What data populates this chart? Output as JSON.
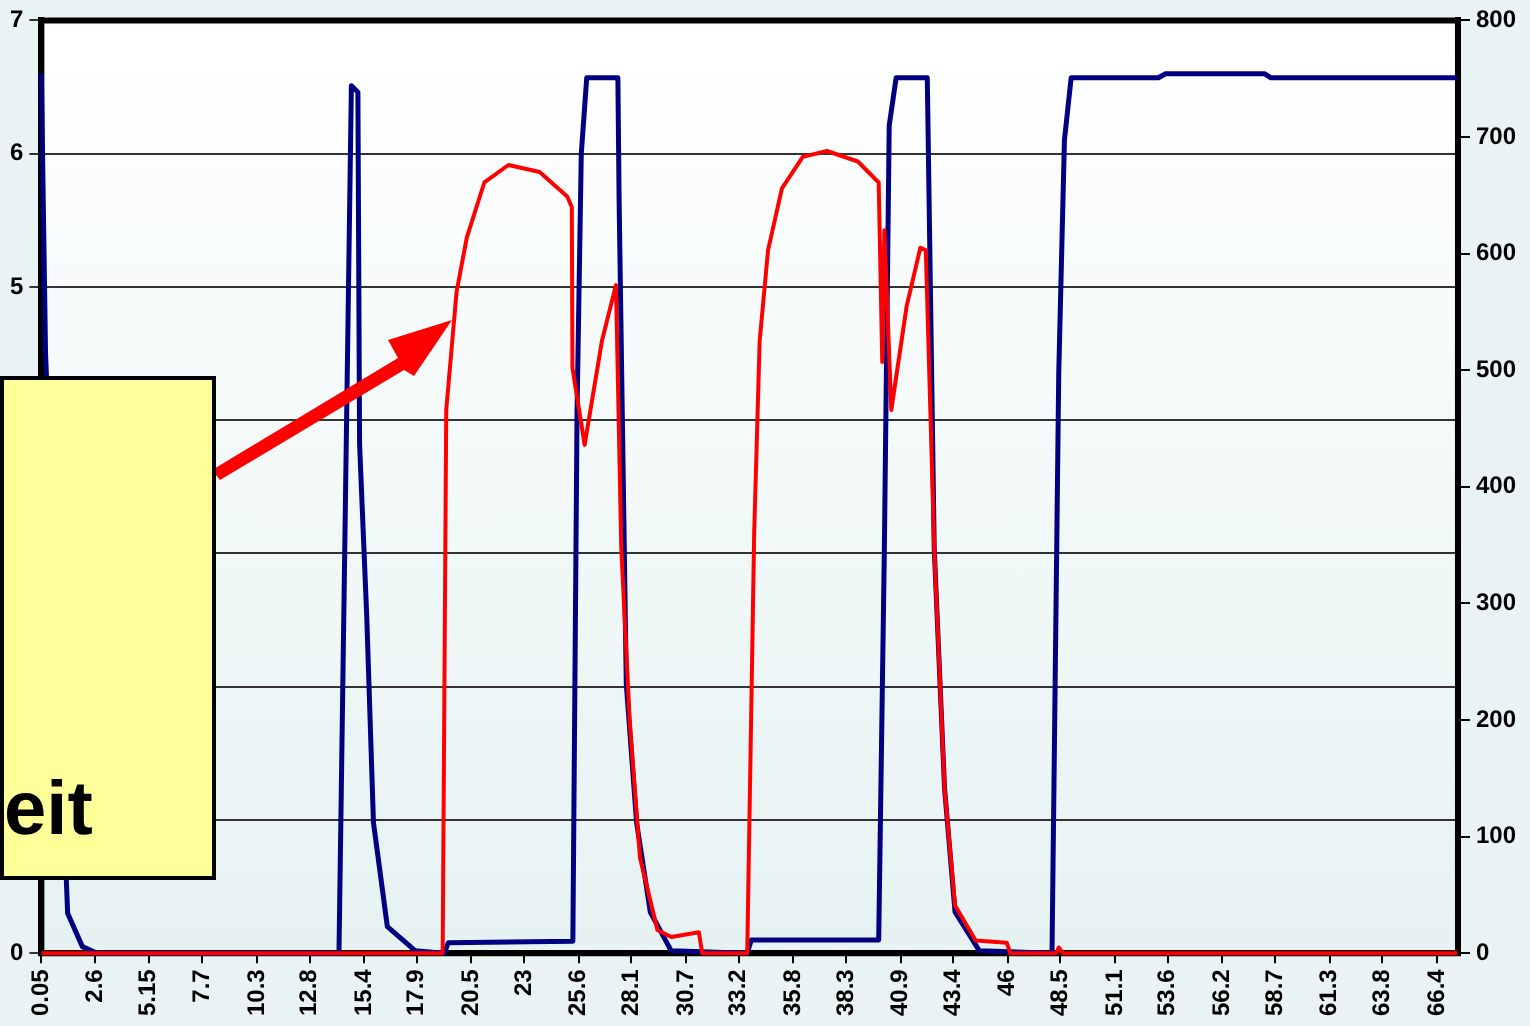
{
  "chart_data": {
    "type": "line",
    "xlim": [
      0.05,
      67.4
    ],
    "xticks": [
      0.05,
      2.6,
      5.15,
      7.7,
      10.3,
      12.8,
      15.4,
      17.9,
      20.5,
      23,
      25.6,
      28.1,
      30.7,
      33.2,
      35.8,
      38.3,
      40.9,
      43.4,
      46,
      48.5,
      51.1,
      53.6,
      56.2,
      58.7,
      61.3,
      63.8,
      66.4
    ],
    "ylim": [
      0,
      7
    ],
    "yticks": [
      0,
      {
        "value": 1,
        "label": null
      },
      {
        "value": 2,
        "label": null
      },
      {
        "value": 3,
        "label": null
      },
      {
        "value": 4,
        "label": null
      },
      5,
      6,
      7
    ],
    "y2lim": [
      0,
      800
    ],
    "y2ticks": [
      0,
      100,
      200,
      300,
      400,
      500,
      600,
      700,
      800
    ],
    "grid": "y",
    "legend": false,
    "marker": "none",
    "line_style": "solid",
    "annotations": [
      "eit"
    ],
    "series": [
      {
        "color": "#000080",
        "x": [
          0.05,
          0.25,
          1.3,
          2.0,
          2.7,
          14.2,
          14.79,
          15.1,
          15.18,
          15.52,
          15.84,
          16.5,
          17.82,
          19.2,
          19.4,
          25.32,
          25.52,
          25.72,
          25.98,
          27.46,
          27.52,
          27.86,
          28.35,
          29.0,
          29.99,
          33.61,
          33.8,
          39.86,
          40.13,
          40.36,
          40.69,
          42.17,
          42.5,
          42.99,
          43.49,
          44.64,
          48.1,
          48.42,
          48.69,
          49.01,
          53.16,
          53.5,
          58.2,
          58.49,
          67.37
        ],
        "values": [
          6.6,
          4.5,
          0.3,
          0.05,
          0,
          0,
          6.51,
          6.46,
          3.82,
          2.53,
          0.98,
          0.2,
          0.02,
          0,
          0.08,
          0.09,
          4.08,
          6.0,
          6.57,
          6.57,
          5.64,
          2.02,
          0.98,
          0.31,
          0.02,
          0,
          0.1,
          0.1,
          3.04,
          6.21,
          6.57,
          6.57,
          3.04,
          1.24,
          0.31,
          0.02,
          0,
          4.35,
          6.1,
          6.57,
          6.57,
          6.6,
          6.6,
          6.57,
          6.57
        ]
      },
      {
        "color": "#ff0000",
        "axis": "y2",
        "x": [
          0.05,
          19.13,
          19.3,
          19.79,
          20.28,
          21.11,
          22.26,
          23.74,
          25.05,
          25.27,
          25.3,
          25.88,
          26.7,
          27.37,
          27.62,
          28.02,
          28.51,
          29.34,
          30.0,
          31.31,
          31.47,
          33.61,
          33.94,
          34.2,
          34.6,
          35.26,
          36.25,
          37.4,
          38.87,
          39.86,
          40.03,
          40.13,
          40.46,
          41.19,
          41.84,
          42.1,
          42.5,
          42.99,
          43.49,
          44.47,
          45.95,
          46.12,
          48.3,
          48.42,
          48.62,
          67.37
        ],
        "values": [
          0,
          0,
          466,
          567,
          614,
          661,
          676,
          670,
          649,
          640,
          502,
          436,
          525,
          573,
          348,
          200,
          82,
          20,
          14,
          18,
          0,
          0,
          360,
          525,
          603,
          656,
          683,
          688,
          679,
          661,
          507,
          620,
          466,
          555,
          605,
          603,
          348,
          142,
          41,
          11,
          9,
          0,
          0,
          5,
          0,
          0
        ]
      }
    ]
  }
}
